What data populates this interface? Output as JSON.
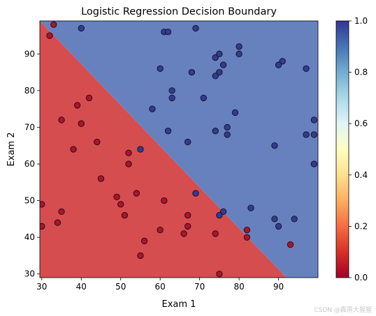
{
  "chart_data": {
    "type": "scatter",
    "title": "Logistic Regression Decision Boundary",
    "xlabel": "Exam 1",
    "ylabel": "Exam 2",
    "xlim": [
      29.5,
      100
    ],
    "ylim": [
      29,
      99
    ],
    "xticks": [
      30,
      40,
      50,
      60,
      70,
      80,
      90
    ],
    "yticks": [
      30,
      40,
      50,
      60,
      70,
      80,
      90
    ],
    "grid": false,
    "decision_boundary": {
      "x": [
        29.5,
        92
      ],
      "y": [
        99,
        29
      ]
    },
    "regions": {
      "class_0_color": "#d64d4f",
      "class_1_color": "#6781bf"
    },
    "series": [
      {
        "class": 0,
        "color": "#b0122a",
        "points": [
          [
            33,
            98
          ],
          [
            32,
            95
          ],
          [
            42,
            78
          ],
          [
            39,
            76
          ],
          [
            35,
            72
          ],
          [
            40,
            71
          ],
          [
            44,
            66
          ],
          [
            38,
            64
          ],
          [
            52,
            63
          ],
          [
            52,
            60
          ],
          [
            45,
            56
          ],
          [
            30,
            49
          ],
          [
            35,
            47
          ],
          [
            49,
            51
          ],
          [
            50,
            49
          ],
          [
            51,
            46
          ],
          [
            54,
            52
          ],
          [
            61,
            50
          ],
          [
            67,
            46
          ],
          [
            60,
            42
          ],
          [
            67,
            43
          ],
          [
            66,
            41
          ],
          [
            56,
            39
          ],
          [
            34,
            44
          ],
          [
            30,
            43
          ],
          [
            55,
            35
          ],
          [
            75,
            30
          ],
          [
            74,
            41
          ],
          [
            82,
            42
          ],
          [
            82,
            40
          ],
          [
            93,
            38
          ]
        ]
      },
      {
        "class": 1,
        "color": "#313b95",
        "points": [
          [
            40,
            97
          ],
          [
            61,
            96
          ],
          [
            62,
            96
          ],
          [
            69,
            97
          ],
          [
            80,
            92
          ],
          [
            74,
            89
          ],
          [
            75,
            90
          ],
          [
            80,
            90
          ],
          [
            76,
            87
          ],
          [
            91,
            88
          ],
          [
            90,
            87
          ],
          [
            60,
            86
          ],
          [
            68,
            85
          ],
          [
            75,
            85
          ],
          [
            74,
            84
          ],
          [
            97,
            86
          ],
          [
            63,
            80
          ],
          [
            63,
            78
          ],
          [
            71,
            78
          ],
          [
            58,
            75
          ],
          [
            79,
            74
          ],
          [
            99,
            72
          ],
          [
            77,
            70
          ],
          [
            62,
            69
          ],
          [
            74,
            69
          ],
          [
            77,
            68
          ],
          [
            97,
            68
          ],
          [
            99,
            68
          ],
          [
            67,
            66
          ],
          [
            89,
            65
          ],
          [
            55,
            64
          ],
          [
            99,
            60
          ],
          [
            69,
            52
          ],
          [
            83,
            48
          ],
          [
            76,
            47
          ],
          [
            75,
            46
          ],
          [
            89,
            45
          ],
          [
            94,
            45
          ],
          [
            90,
            43
          ]
        ]
      }
    ],
    "colorbar": {
      "ticks": [
        "0.0",
        "0.2",
        "0.4",
        "0.6",
        "0.8",
        "1.0"
      ],
      "colormap": "RdYlBu"
    }
  },
  "watermark": "CSDN @霹雳大猩猩"
}
